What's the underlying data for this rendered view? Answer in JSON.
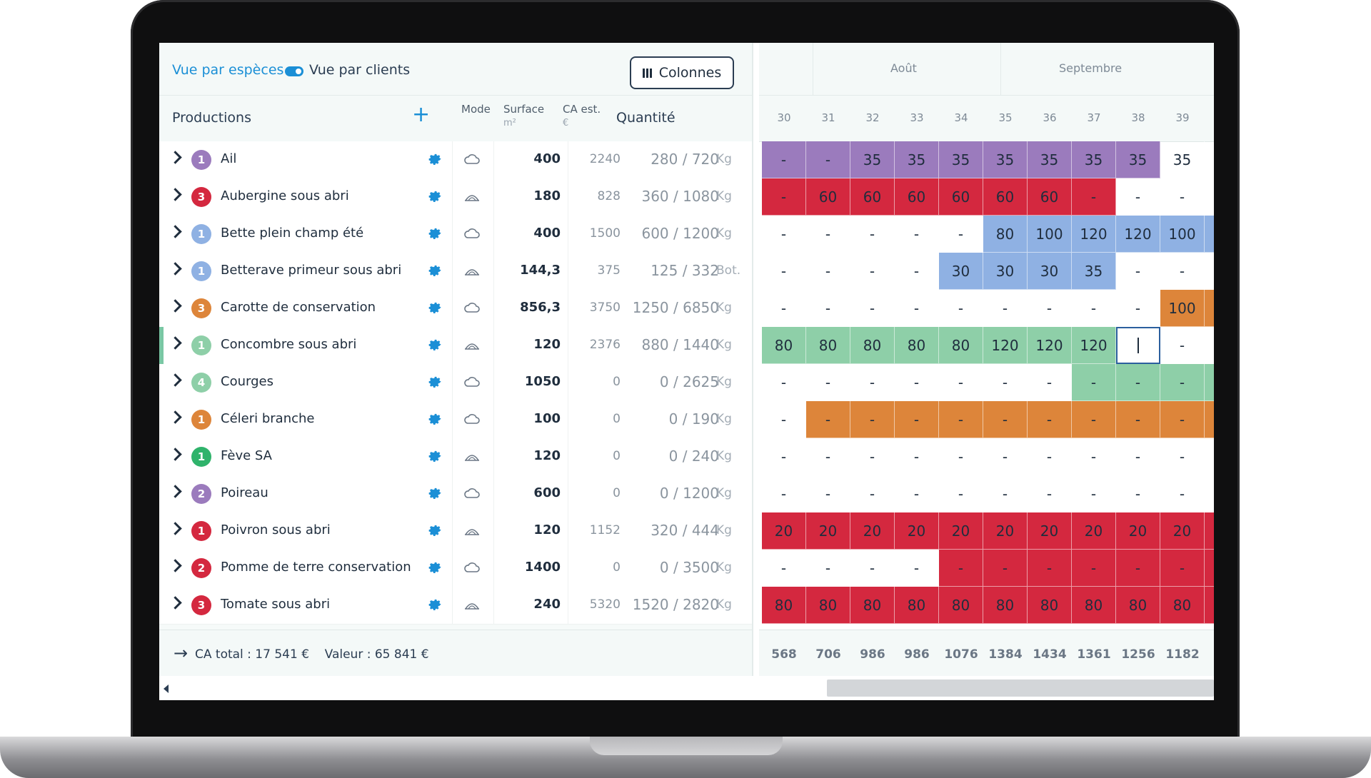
{
  "toolbar": {
    "view_species": "Vue par espèces",
    "view_clients": "Vue par clients",
    "columns_button": "Colonnes"
  },
  "header": {
    "productions": "Productions",
    "mode": "Mode",
    "surface": "Surface",
    "surface_unit": "m²",
    "ca": "CA est.",
    "ca_unit": "€",
    "quantity": "Quantité"
  },
  "colors": {
    "purple": "#9b7bbd",
    "red": "#d4283f",
    "blue": "#8fb1e3",
    "orange": "#dd853a",
    "green": "#8ecfa8",
    "green_dark": "#2fb36b",
    "accent": "#1b8fd6"
  },
  "rows": [
    {
      "badge": "1",
      "badge_color": "#9b7bbd",
      "name": "Ail",
      "mode": "field",
      "surface": "400",
      "ca": "2240",
      "qty": "280 / 720",
      "unit": "Kg"
    },
    {
      "badge": "3",
      "badge_color": "#d4283f",
      "name": "Aubergine sous abri",
      "mode": "tunnel",
      "surface": "180",
      "ca": "828",
      "qty": "360 / 1080",
      "unit": "Kg"
    },
    {
      "badge": "1",
      "badge_color": "#8fb1e3",
      "name": "Bette plein champ été",
      "mode": "field",
      "surface": "400",
      "ca": "1500",
      "qty": "600 / 1200",
      "unit": "Kg"
    },
    {
      "badge": "1",
      "badge_color": "#8fb1e3",
      "name": "Betterave primeur sous abri",
      "mode": "tunnel",
      "surface": "144,3",
      "ca": "375",
      "qty": "125 / 332",
      "unit": "Bot."
    },
    {
      "badge": "3",
      "badge_color": "#dd853a",
      "name": "Carotte de conservation",
      "mode": "field",
      "surface": "856,3",
      "ca": "3750",
      "qty": "1250 / 6850",
      "unit": "Kg"
    },
    {
      "badge": "1",
      "badge_color": "#8ecfa8",
      "name": "Concombre sous abri",
      "mode": "tunnel",
      "surface": "120",
      "ca": "2376",
      "qty": "880 / 1440",
      "unit": "Kg"
    },
    {
      "badge": "4",
      "badge_color": "#8ecfa8",
      "name": "Courges",
      "mode": "field",
      "surface": "1050",
      "ca": "0",
      "qty": "0 / 2625",
      "unit": "Kg"
    },
    {
      "badge": "1",
      "badge_color": "#dd853a",
      "name": "Céleri branche",
      "mode": "field",
      "surface": "100",
      "ca": "0",
      "qty": "0 / 190",
      "unit": "Kg"
    },
    {
      "badge": "1",
      "badge_color": "#2fb36b",
      "name": "Fève SA",
      "mode": "tunnel",
      "surface": "120",
      "ca": "0",
      "qty": "0 / 240",
      "unit": "Kg"
    },
    {
      "badge": "2",
      "badge_color": "#9b7bbd",
      "name": "Poireau",
      "mode": "field",
      "surface": "600",
      "ca": "0",
      "qty": "0 / 1200",
      "unit": "Kg"
    },
    {
      "badge": "1",
      "badge_color": "#d4283f",
      "name": "Poivron sous abri",
      "mode": "tunnel",
      "surface": "120",
      "ca": "1152",
      "qty": "320 / 444",
      "unit": "Kg"
    },
    {
      "badge": "2",
      "badge_color": "#d4283f",
      "name": "Pomme de terre conservation",
      "mode": "field",
      "surface": "1400",
      "ca": "0",
      "qty": "0 / 3500",
      "unit": "Kg"
    },
    {
      "badge": "3",
      "badge_color": "#d4283f",
      "name": "Tomate sous abri",
      "mode": "tunnel",
      "surface": "240",
      "ca": "5320",
      "qty": "1520 / 2820",
      "unit": "Kg"
    }
  ],
  "footer": {
    "ca_total": "CA total : 17 541 €",
    "valeur": "Valeur : 65 841 €"
  },
  "months": [
    "Août",
    "Septembre"
  ],
  "weeks": [
    "30",
    "31",
    "32",
    "33",
    "34",
    "35",
    "36",
    "37",
    "38",
    "39"
  ],
  "grid": [
    {
      "color": "#9b7bbd",
      "cells": [
        "-",
        "-",
        "35",
        "35",
        "35",
        "35",
        "35",
        "35",
        "35",
        "35"
      ],
      "filled_from": 0,
      "filled_to": 9
    },
    {
      "color": "#d4283f",
      "cells": [
        "-",
        "60",
        "60",
        "60",
        "60",
        "60",
        "60",
        "-",
        "-",
        "-"
      ],
      "filled_from": 0,
      "filled_to": 8
    },
    {
      "color": "#8fb1e3",
      "cells": [
        "-",
        "-",
        "-",
        "-",
        "-",
        "80",
        "100",
        "120",
        "120",
        "100"
      ],
      "filled_from": 5,
      "filled_to": 10
    },
    {
      "color": "#8fb1e3",
      "cells": [
        "-",
        "-",
        "-",
        "-",
        "30",
        "30",
        "30",
        "35",
        "-",
        "-"
      ],
      "filled_from": 4,
      "filled_to": 8
    },
    {
      "color": "#dd853a",
      "cells": [
        "-",
        "-",
        "-",
        "-",
        "-",
        "-",
        "-",
        "-",
        "-",
        "100"
      ],
      "filled_from": 9,
      "filled_to": 10
    },
    {
      "color": "#8ecfa8",
      "cells": [
        "80",
        "80",
        "80",
        "80",
        "80",
        "120",
        "120",
        "120",
        "",
        "-"
      ],
      "filled_from": 0,
      "filled_to": 9
    },
    {
      "color": "#8ecfa8",
      "cells": [
        "-",
        "-",
        "-",
        "-",
        "-",
        "-",
        "-",
        "-",
        "-",
        "-"
      ],
      "filled_from": 7,
      "filled_to": 10
    },
    {
      "color": "#dd853a",
      "cells": [
        "-",
        "-",
        "-",
        "-",
        "-",
        "-",
        "-",
        "-",
        "-",
        "-"
      ],
      "filled_from": 1,
      "filled_to": 10
    },
    {
      "color": "#2fb36b",
      "cells": [
        "-",
        "-",
        "-",
        "-",
        "-",
        "-",
        "-",
        "-",
        "-",
        "-"
      ],
      "filled_from": 0,
      "filled_to": 0
    },
    {
      "color": "#9b7bbd",
      "cells": [
        "-",
        "-",
        "-",
        "-",
        "-",
        "-",
        "-",
        "-",
        "-",
        "-"
      ],
      "filled_from": 0,
      "filled_to": 0
    },
    {
      "color": "#d4283f",
      "cells": [
        "20",
        "20",
        "20",
        "20",
        "20",
        "20",
        "20",
        "20",
        "20",
        "20"
      ],
      "filled_from": 0,
      "filled_to": 10
    },
    {
      "color": "#d4283f",
      "cells": [
        "-",
        "-",
        "-",
        "-",
        "-",
        "-",
        "-",
        "-",
        "-",
        "-"
      ],
      "filled_from": 4,
      "filled_to": 10
    },
    {
      "color": "#d4283f",
      "cells": [
        "80",
        "80",
        "80",
        "80",
        "80",
        "80",
        "80",
        "80",
        "80",
        "80"
      ],
      "filled_from": 0,
      "filled_to": 10
    }
  ],
  "totals": [
    "568",
    "706",
    "986",
    "986",
    "1076",
    "1384",
    "1434",
    "1361",
    "1256",
    "1182"
  ]
}
